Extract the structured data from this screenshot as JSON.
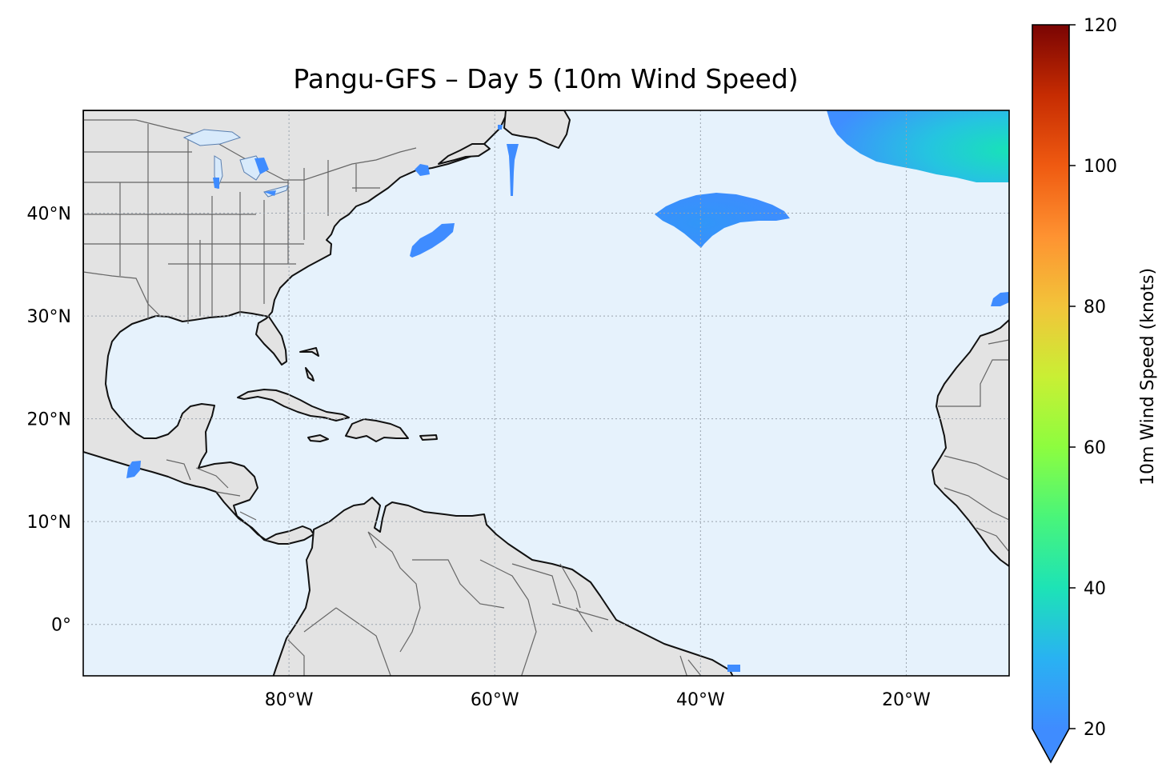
{
  "title": "Pangu-GFS – Day 5 (10m Wind Speed)",
  "map": {
    "extent_lon": [
      -100,
      -10
    ],
    "extent_lat": [
      -5,
      50
    ],
    "gridlines": true,
    "x_ticks": [
      {
        "lon": -80,
        "label": "80°W"
      },
      {
        "lon": -60,
        "label": "60°W"
      },
      {
        "lon": -40,
        "label": "40°W"
      },
      {
        "lon": -20,
        "label": "20°W"
      }
    ],
    "y_ticks": [
      {
        "lat": 40,
        "label": "40°N"
      },
      {
        "lat": 30,
        "label": "30°N"
      },
      {
        "lat": 20,
        "label": "20°N"
      },
      {
        "lat": 10,
        "label": "10°N"
      },
      {
        "lat": 0,
        "label": "0°"
      }
    ],
    "ocean_color": "#e6f2fc",
    "land_color": "#e3e3e3",
    "coastline_color": "#111111",
    "border_color": "#555555"
  },
  "colorbar": {
    "label": "10m Wind Speed (knots)",
    "min": 20,
    "max": 120,
    "extend": "min",
    "colormap": "turbo",
    "ticks": [
      {
        "value": 20,
        "label": "20"
      },
      {
        "value": 40,
        "label": "40"
      },
      {
        "value": 60,
        "label": "60"
      },
      {
        "value": 80,
        "label": "80"
      },
      {
        "value": 100,
        "label": "100"
      },
      {
        "value": 120,
        "label": "120"
      }
    ]
  },
  "wind_regions": [
    {
      "name": "northeast-atlantic-wind-area",
      "lon_range": [
        -28,
        -10
      ],
      "lat_range": [
        43,
        50
      ],
      "peak_knots": 33
    },
    {
      "name": "central-atlantic-wind-area",
      "center_lon": -39,
      "center_lat": 39,
      "peak_knots": 23
    },
    {
      "name": "western-atlantic-wind-patch",
      "center_lon": -67,
      "center_lat": 38,
      "peak_knots": 21
    },
    {
      "name": "eastern-atlantic-wind-patch",
      "center_lon": -11,
      "center_lat": 31.6,
      "peak_knots": 21
    },
    {
      "name": "caribbean-wind-patch",
      "center_lon": -95,
      "center_lat": 15,
      "peak_knots": 21
    }
  ]
}
